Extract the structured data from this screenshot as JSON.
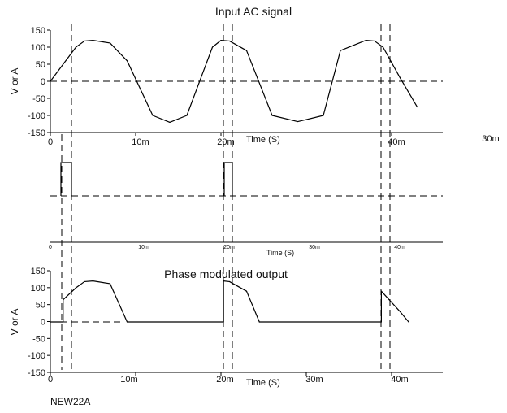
{
  "chart_data": [
    {
      "type": "line",
      "title": "Input AC signal",
      "ylabel": "V or A",
      "xlabel": "Time (S)",
      "yticks": [
        "150",
        "100",
        "50",
        "0",
        "-50",
        "-100",
        "-150"
      ],
      "xticks": [
        "0",
        "10m",
        "20m",
        "40m"
      ],
      "stray_label": "30m",
      "ylim": [
        -150,
        150
      ],
      "xlim_ms": [
        0,
        46
      ],
      "series": [
        {
          "x_ms": [
            0,
            3,
            4,
            5,
            7,
            9,
            12,
            14,
            16,
            19,
            20,
            21,
            23,
            26,
            29,
            32,
            34,
            37,
            38,
            39,
            41,
            43
          ],
          "y": [
            0,
            100,
            118,
            120,
            112,
            60,
            -100,
            -120,
            -100,
            100,
            120,
            118,
            90,
            -100,
            -118,
            -100,
            90,
            120,
            118,
            100,
            10,
            -75
          ]
        }
      ],
      "threshold_y": 0
    },
    {
      "type": "line",
      "title": "",
      "xlabel": "Time (S)",
      "xticks": [
        "0",
        "10m",
        "20m",
        "30m",
        "40m"
      ],
      "pulse_ranges_ms": [
        [
          1.5,
          2.7
        ],
        [
          21.2,
          22.4
        ]
      ]
    },
    {
      "type": "line",
      "title": "Phase modulated output",
      "ylabel": "V or A",
      "xlabel": "Time (S)",
      "yticks": [
        "150",
        "100",
        "50",
        "0",
        "-50",
        "-100",
        "-150"
      ],
      "xticks": [
        "0",
        "10m",
        "20m",
        "30m",
        "40m"
      ],
      "ylim": [
        -150,
        150
      ],
      "series": [
        {
          "x_ms": [
            0,
            1.5,
            1.5,
            3,
            4,
            5,
            7,
            9,
            20.3,
            20.3,
            21,
            23,
            24.5,
            38.8,
            38.8,
            41,
            42
          ],
          "y": [
            0,
            0,
            65,
            100,
            118,
            120,
            112,
            0,
            0,
            120,
            118,
            90,
            0,
            0,
            90,
            30,
            0
          ]
        }
      ]
    }
  ],
  "footer_label": "NEW22A"
}
